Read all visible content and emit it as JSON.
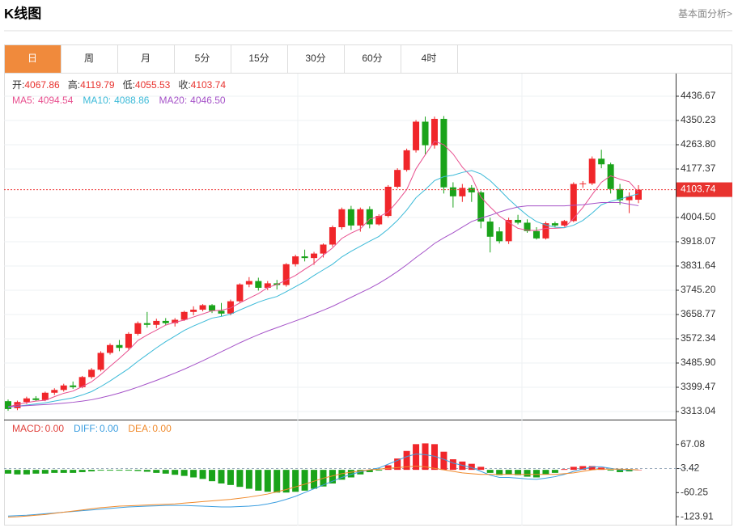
{
  "header": {
    "title": "K线图",
    "link": "基本面分析>"
  },
  "tabs": [
    "日",
    "周",
    "月",
    "5分",
    "15分",
    "30分",
    "60分",
    "4时"
  ],
  "active_tab": 0,
  "chart_data": [
    {
      "type": "candlestick",
      "up_color": "#f0262a",
      "down_color": "#1aa31a",
      "info": [
        {
          "label": "开:",
          "value": "4067.86"
        },
        {
          "label": "高:",
          "value": "4119.79"
        },
        {
          "label": "低:",
          "value": "4055.53"
        },
        {
          "label": "收:",
          "value": "4103.74"
        }
      ],
      "open": [
        3350,
        3325,
        3347,
        3360,
        3354,
        3380,
        3390,
        3406,
        3400,
        3436,
        3462,
        3522,
        3550,
        3540,
        3590,
        3628,
        3622,
        3636,
        3628,
        3640,
        3668,
        3676,
        3692,
        3672,
        3662,
        3706,
        3766,
        3778,
        3754,
        3770,
        3764,
        3838,
        3866,
        3860,
        3876,
        3908,
        3970,
        4034,
        3976,
        4034,
        3980,
        4010,
        4114,
        4174,
        4244,
        4346,
        4262,
        4356,
        4112,
        4080,
        4110,
        4094,
        3990,
        3955,
        3920,
        3996,
        3986,
        3956,
        3930,
        3984,
        3976,
        3992,
        4124,
        4126,
        4214,
        4194,
        4106,
        4066,
        4067.86
      ],
      "high": [
        3356,
        3352,
        3366,
        3368,
        3384,
        3396,
        3412,
        3420,
        3440,
        3468,
        3528,
        3556,
        3568,
        3596,
        3634,
        3668,
        3644,
        3646,
        3646,
        3672,
        3688,
        3696,
        3696,
        3700,
        3712,
        3770,
        3792,
        3790,
        3778,
        3782,
        3842,
        3872,
        3890,
        3882,
        3912,
        3976,
        4040,
        4046,
        4040,
        4044,
        4016,
        4120,
        4180,
        4250,
        4352,
        4364,
        4364,
        4366,
        4130,
        4124,
        4120,
        4100,
        4004,
        3970,
        4004,
        4014,
        3998,
        3970,
        3990,
        3990,
        3996,
        4130,
        4134,
        4222,
        4246,
        4200,
        4124,
        4094,
        4119.79
      ],
      "low": [
        3316,
        3318,
        3340,
        3350,
        3350,
        3372,
        3384,
        3394,
        3396,
        3430,
        3456,
        3516,
        3528,
        3534,
        3584,
        3612,
        3610,
        3620,
        3616,
        3636,
        3656,
        3670,
        3664,
        3652,
        3656,
        3700,
        3756,
        3744,
        3746,
        3748,
        3758,
        3830,
        3848,
        3836,
        3862,
        3900,
        3962,
        3960,
        3954,
        3966,
        3976,
        4004,
        4108,
        4168,
        4236,
        4230,
        4250,
        4090,
        4040,
        4060,
        4060,
        3966,
        3880,
        3912,
        3910,
        3980,
        3950,
        3926,
        3926,
        3970,
        3972,
        3988,
        4110,
        4120,
        4180,
        4090,
        4050,
        4020,
        4055.53
      ],
      "close": [
        3322,
        3347,
        3360,
        3354,
        3380,
        3390,
        3406,
        3400,
        3436,
        3462,
        3522,
        3550,
        3540,
        3590,
        3628,
        3622,
        3636,
        3628,
        3640,
        3668,
        3676,
        3692,
        3672,
        3662,
        3706,
        3766,
        3778,
        3754,
        3770,
        3764,
        3838,
        3866,
        3860,
        3876,
        3908,
        3970,
        4034,
        3976,
        4034,
        3980,
        4010,
        4114,
        4174,
        4244,
        4346,
        4262,
        4356,
        4112,
        4080,
        4110,
        4094,
        3990,
        3936,
        3920,
        3996,
        3986,
        3956,
        3930,
        3984,
        3976,
        3992,
        4124,
        4126,
        4214,
        4194,
        4106,
        4066,
        4080,
        4103.74
      ],
      "series": [
        {
          "name": "MA5:",
          "current": "4094.54",
          "color": "#e8508f",
          "values": [
            3330,
            3338,
            3345,
            3350,
            3353,
            3366,
            3378,
            3386,
            3402,
            3419,
            3445,
            3474,
            3502,
            3532,
            3566,
            3586,
            3603,
            3621,
            3631,
            3639,
            3650,
            3661,
            3672,
            3674,
            3682,
            3700,
            3717,
            3733,
            3755,
            3766,
            3781,
            3798,
            3820,
            3841,
            3870,
            3896,
            3930,
            3949,
            3964,
            3999,
            4007,
            4024,
            4062,
            4104,
            4178,
            4228,
            4276,
            4264,
            4231,
            4184,
            4150,
            4077,
            4042,
            4010,
            3987,
            3966,
            3959,
            3958,
            3966,
            3966,
            3968,
            4001,
            4040,
            4086,
            4130,
            4153,
            4141,
            4132,
            4094.54
          ]
        },
        {
          "name": "MA10:",
          "current": "4088.86",
          "color": "#3bbad8",
          "values": [
            3328,
            3332,
            3336,
            3340,
            3344,
            3350,
            3356,
            3362,
            3372,
            3384,
            3402,
            3422,
            3444,
            3466,
            3492,
            3516,
            3540,
            3562,
            3582,
            3602,
            3618,
            3632,
            3646,
            3652,
            3660,
            3675,
            3689,
            3703,
            3714,
            3723,
            3740,
            3758,
            3776,
            3798,
            3818,
            3838,
            3864,
            3884,
            3902,
            3920,
            3937,
            3963,
            3994,
            4031,
            4075,
            4104,
            4136,
            4150,
            4155,
            4165,
            4172,
            4160,
            4136,
            4104,
            4070,
            4040,
            4012,
            3990,
            3978,
            3970,
            3968,
            3977,
            3994,
            4020,
            4050,
            4062,
            4070,
            4080,
            4088.86
          ]
        },
        {
          "name": "MA20:",
          "current": "4046.50",
          "color": "#a552c8",
          "values": [
            3330,
            3332,
            3334,
            3336,
            3338,
            3340,
            3343,
            3346,
            3350,
            3355,
            3362,
            3370,
            3379,
            3389,
            3400,
            3412,
            3424,
            3437,
            3450,
            3464,
            3479,
            3494,
            3510,
            3526,
            3542,
            3558,
            3573,
            3587,
            3600,
            3612,
            3624,
            3636,
            3648,
            3661,
            3674,
            3688,
            3704,
            3720,
            3736,
            3752,
            3770,
            3790,
            3812,
            3836,
            3862,
            3886,
            3912,
            3932,
            3950,
            3970,
            3990,
            4002,
            4012,
            4024,
            4034,
            4042,
            4046,
            4046,
            4046,
            4046,
            4046,
            4048,
            4050,
            4054,
            4058,
            4058,
            4058,
            4052,
            4046.5
          ]
        }
      ],
      "last_price": {
        "value": 4103.74,
        "label": "4103.74"
      },
      "ylim": [
        3290,
        4514.5
      ],
      "yticks": [
        4436.67,
        4350.23,
        {
          "value": 4263.8,
          "label": "4263.80"
        },
        4177.37,
        {
          "value": 4004.5,
          "label": "4004.50"
        },
        3918.07,
        3831.64,
        {
          "value": 3745.2,
          "label": "3745.20"
        },
        3658.77,
        3572.34,
        {
          "value": 3485.9,
          "label": "3485.90"
        },
        3399.47,
        3313.04
      ],
      "grid": true
    },
    {
      "type": "macd",
      "series": [
        {
          "name": "MACD:",
          "current": "0.00",
          "color": "#e0413c",
          "values": [
            -10,
            -12,
            -12,
            -10,
            -10,
            -8,
            -8,
            -8,
            -6,
            -4,
            -2,
            -2,
            -2,
            -2,
            -3,
            -5,
            -8,
            -10,
            -13,
            -16,
            -20,
            -24,
            -30,
            -36,
            -40,
            -45,
            -50,
            -55,
            -58,
            -60,
            -60,
            -58,
            -55,
            -50,
            -44,
            -36,
            -26,
            -20,
            -12,
            -6,
            -2,
            12,
            30,
            50,
            68,
            70,
            68,
            48,
            28,
            22,
            16,
            8,
            -8,
            -14,
            -12,
            -14,
            -18,
            -20,
            -12,
            -8,
            2,
            8,
            10,
            10,
            6,
            -2,
            -6,
            -4,
            0
          ]
        },
        {
          "name": "DIFF:",
          "current": "0.00",
          "color": "#3b9ee0",
          "values": [
            -122,
            -121,
            -120,
            -118,
            -116,
            -114,
            -112,
            -110,
            -108,
            -106,
            -104,
            -102,
            -100,
            -98,
            -97,
            -96,
            -95,
            -94,
            -94,
            -94,
            -95,
            -96,
            -97,
            -98,
            -98,
            -97,
            -96,
            -94,
            -90,
            -85,
            -78,
            -70,
            -60,
            -50,
            -40,
            -30,
            -20,
            -12,
            -5,
            0,
            5,
            15,
            25,
            35,
            42,
            40,
            36,
            28,
            18,
            12,
            6,
            -4,
            -14,
            -20,
            -20,
            -22,
            -24,
            -25,
            -22,
            -18,
            -12,
            -4,
            2,
            8,
            8,
            4,
            0,
            0,
            0
          ]
        },
        {
          "name": "DEA:",
          "current": "0.00",
          "color": "#f08a2c",
          "values": [
            -125,
            -124,
            -122,
            -120,
            -118,
            -115,
            -112,
            -109,
            -106,
            -103,
            -100,
            -98,
            -96,
            -95,
            -94,
            -93,
            -92,
            -91,
            -90,
            -88,
            -86,
            -84,
            -82,
            -80,
            -78,
            -75,
            -72,
            -68,
            -64,
            -58,
            -52,
            -45,
            -38,
            -30,
            -22,
            -16,
            -10,
            -6,
            -3,
            0,
            2,
            4,
            6,
            8,
            10,
            8,
            4,
            0,
            -4,
            -8,
            -10,
            -12,
            -12,
            -12,
            -12,
            -12,
            -12,
            -12,
            -12,
            -12,
            -10,
            -8,
            -4,
            0,
            2,
            2,
            2,
            1,
            0
          ]
        }
      ],
      "up_color": "#f0262a",
      "down_color": "#1aa31a",
      "ylim": [
        -147.25,
        128.6
      ],
      "yticks": [
        67.08,
        3.42,
        -60.25,
        -123.91
      ],
      "zero_tick": 1
    }
  ]
}
